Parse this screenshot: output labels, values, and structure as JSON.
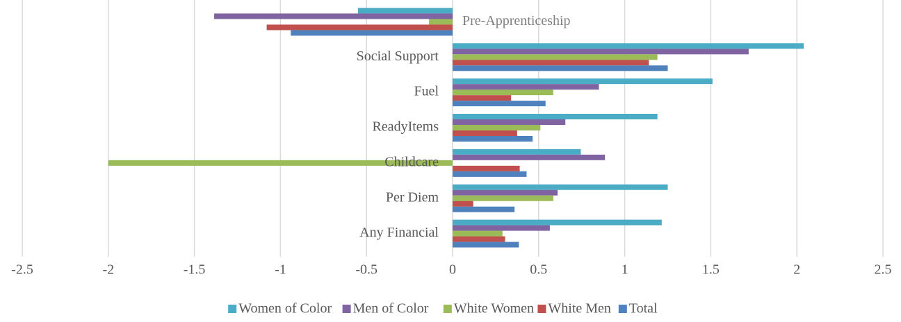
{
  "chart_data": {
    "type": "hbar",
    "categories": [
      "Pre-Apprenticeship",
      "Social Support",
      "Fuel",
      "ReadyItems",
      "Childcare",
      "Per Diem",
      "Any Financial"
    ],
    "series": [
      {
        "name": "Women of Color",
        "color": "#4bacc6",
        "values": [
          -0.55,
          2.04,
          1.51,
          1.19,
          0.745,
          1.25,
          1.215
        ]
      },
      {
        "name": "Men of Color",
        "color": "#8064a2",
        "values": [
          -1.385,
          1.72,
          0.85,
          0.655,
          0.885,
          0.61,
          0.565
        ]
      },
      {
        "name": "White Women",
        "color": "#9bbb59",
        "values": [
          -0.137,
          1.19,
          0.585,
          0.51,
          -2.0,
          0.585,
          0.29
        ]
      },
      {
        "name": "White Men",
        "color": "#c0504d",
        "values": [
          -1.08,
          1.14,
          0.34,
          0.375,
          0.39,
          0.12,
          0.305
        ]
      },
      {
        "name": "Total",
        "color": "#4f81bd",
        "values": [
          -0.94,
          1.25,
          0.54,
          0.465,
          0.43,
          0.36,
          0.385
        ]
      }
    ],
    "xlim": [
      -2.5,
      2.5
    ],
    "xticks": [
      -2.5,
      -2,
      -1.5,
      -1,
      -0.5,
      0,
      0.5,
      1,
      1.5,
      2,
      2.5
    ],
    "grid": true,
    "legend": "bottom"
  }
}
